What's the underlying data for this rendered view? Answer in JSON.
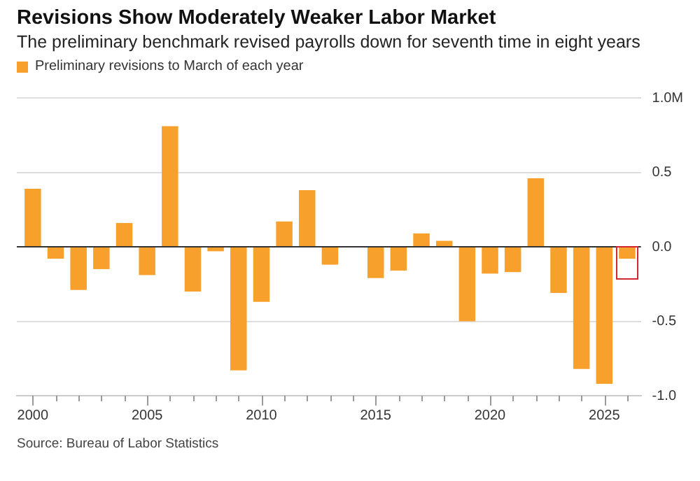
{
  "chart_data": {
    "type": "bar",
    "title": "Revisions Show Moderately Weaker Labor Market",
    "subtitle": "The preliminary benchmark revised payrolls down for seventh time in eight years",
    "x": [
      2000,
      2001,
      2002,
      2003,
      2004,
      2005,
      2006,
      2007,
      2008,
      2009,
      2010,
      2011,
      2012,
      2013,
      2014,
      2015,
      2016,
      2017,
      2018,
      2019,
      2020,
      2021,
      2022,
      2023,
      2024,
      2025,
      2026
    ],
    "series": [
      {
        "name": "Preliminary revisions to March of each year",
        "color": "#f7a12c",
        "values": [
          0.39,
          -0.08,
          -0.29,
          -0.15,
          0.16,
          -0.19,
          0.81,
          -0.3,
          -0.03,
          -0.83,
          -0.37,
          0.17,
          0.38,
          -0.12,
          null,
          -0.21,
          -0.16,
          0.09,
          0.04,
          -0.5,
          -0.18,
          -0.17,
          0.46,
          -0.31,
          -0.82,
          -0.92,
          -0.08
        ]
      }
    ],
    "xlim": [
      1999.3,
      2026.6
    ],
    "xticks": [
      2000,
      {
        "value": 2001,
        "label": null
      },
      {
        "value": 2002,
        "label": null
      },
      {
        "value": 2003,
        "label": null
      },
      {
        "value": 2004,
        "label": null
      },
      2005,
      {
        "value": 2006,
        "label": null
      },
      {
        "value": 2007,
        "label": null
      },
      {
        "value": 2008,
        "label": null
      },
      {
        "value": 2009,
        "label": null
      },
      2010,
      {
        "value": 2011,
        "label": null
      },
      {
        "value": 2012,
        "label": null
      },
      {
        "value": 2013,
        "label": null
      },
      {
        "value": 2014,
        "label": null
      },
      2015,
      {
        "value": 2016,
        "label": null
      },
      {
        "value": 2017,
        "label": null
      },
      {
        "value": 2018,
        "label": null
      },
      {
        "value": 2019,
        "label": null
      },
      2020,
      {
        "value": 2021,
        "label": null
      },
      {
        "value": 2022,
        "label": null
      },
      {
        "value": 2023,
        "label": null
      },
      {
        "value": 2024,
        "label": null
      },
      2025,
      {
        "value": 2026,
        "label": null
      }
    ],
    "ylim": [
      -1.0,
      1.0
    ],
    "yticks": [
      {
        "value": -1.0,
        "label": "-1.0"
      },
      {
        "value": -0.5,
        "label": "-0.5"
      },
      {
        "value": 0,
        "label": "0.0"
      },
      {
        "value": 0.5,
        "label": "0.5"
      },
      {
        "value": 1.0,
        "label": "1.0M"
      }
    ],
    "grid": "y",
    "legend": "top left",
    "annotations": [
      "Source: Bureau of Labor Statistics"
    ]
  }
}
